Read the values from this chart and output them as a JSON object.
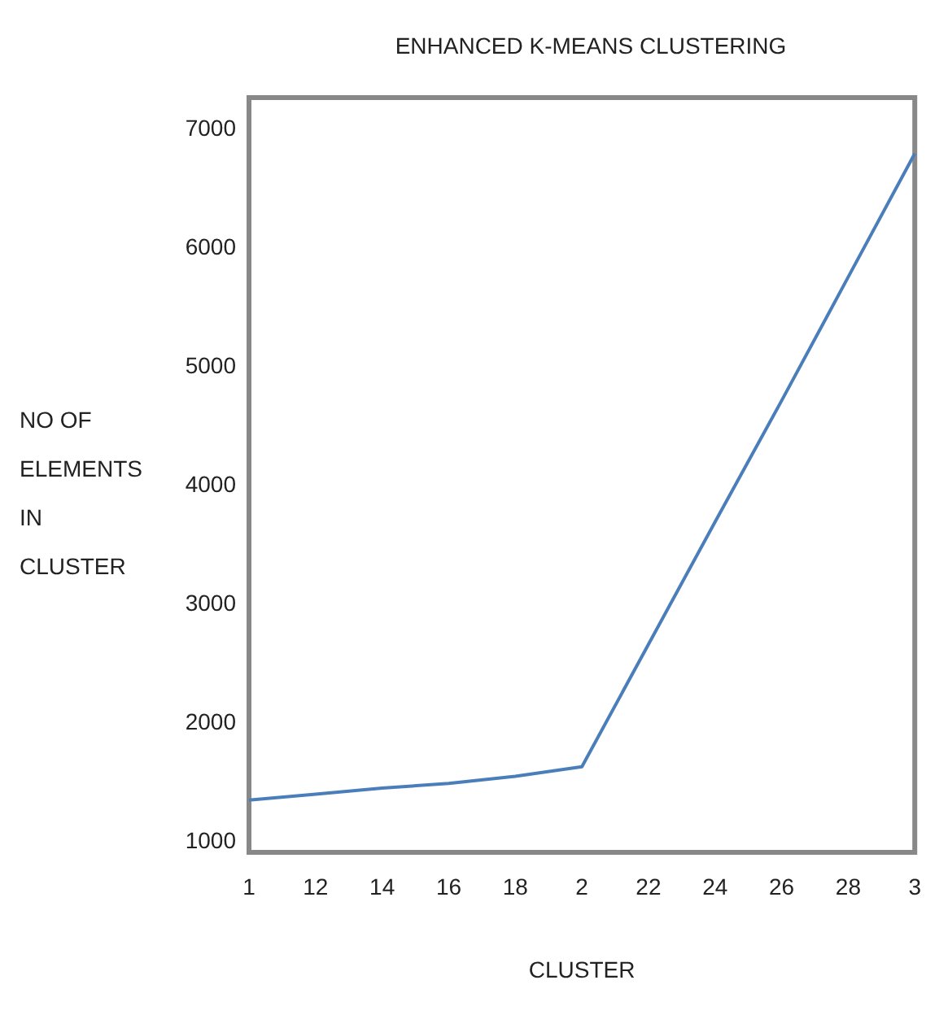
{
  "chart_data": {
    "type": "line",
    "title": "ENHANCED K-MEANS CLUSTERING",
    "xlabel": "CLUSTER",
    "ylabel": "NO OF ELEMENTS IN CLUSTER",
    "categories": [
      "1",
      "12",
      "14",
      "16",
      "18",
      "2",
      "22",
      "24",
      "26",
      "28",
      "3"
    ],
    "series": [
      {
        "color": "#4a7ebb",
        "values": [
          1340,
          1390,
          1440,
          1480,
          1540,
          1620,
          2650,
          3680,
          4700,
          5740,
          6780
        ]
      }
    ],
    "ylim": [
      900,
      7250
    ],
    "yticks": [
      1000,
      2000,
      3000,
      4000,
      5000,
      6000,
      7000
    ],
    "grid": false,
    "marker": "none",
    "line_style": "solid"
  }
}
